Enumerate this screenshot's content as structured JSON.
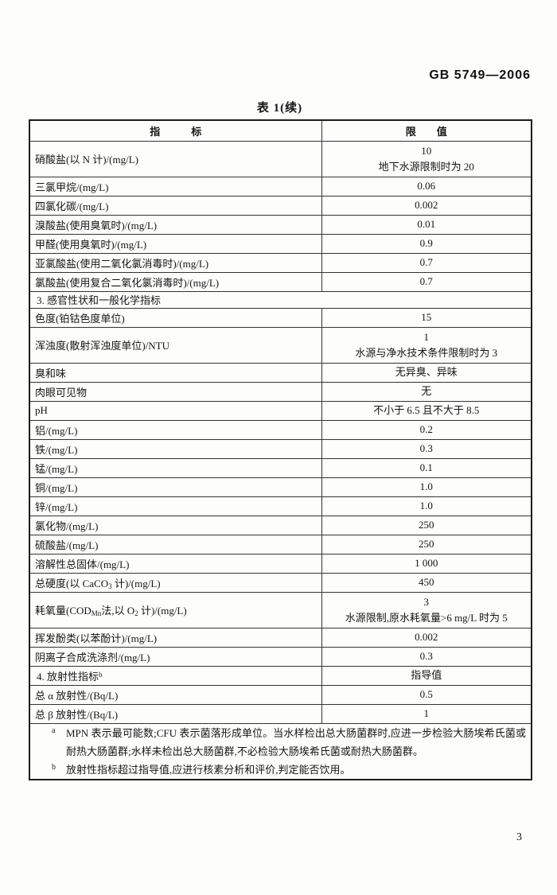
{
  "page": {
    "standard_code": "GB 5749—2006",
    "table_title": "表 1(续)",
    "page_number": "3"
  },
  "table": {
    "header": {
      "indicator": "指　　　标",
      "limit": "限　　值"
    },
    "rows": [
      {
        "label": "硝酸盐(以 N 计)/(mg/L)",
        "value": [
          "10",
          "地下水源限制时为 20"
        ]
      },
      {
        "label": "三氯甲烷/(mg/L)",
        "value": [
          "0.06"
        ]
      },
      {
        "label": "四氯化碳/(mg/L)",
        "value": [
          "0.002"
        ]
      },
      {
        "label": "溴酸盐(使用臭氧时)/(mg/L)",
        "value": [
          "0.01"
        ]
      },
      {
        "label": "甲醛(使用臭氧时)/(mg/L)",
        "value": [
          "0.9"
        ]
      },
      {
        "label": "亚氯酸盐(使用二氧化氯消毒时)/(mg/L)",
        "value": [
          "0.7"
        ]
      },
      {
        "label": "氯酸盐(使用复合二氧化氯消毒时)/(mg/L)",
        "value": [
          "0.7"
        ]
      },
      {
        "label": "3. 感官性状和一般化学指标",
        "section": true,
        "full": true
      },
      {
        "label": "色度(铂钴色度单位)",
        "value": [
          "15"
        ]
      },
      {
        "label": "浑浊度(散射浑浊度单位)/NTU",
        "value": [
          "1",
          "水源与净水技术条件限制时为 3"
        ]
      },
      {
        "label": "臭和味",
        "value": [
          "无异臭、异味"
        ]
      },
      {
        "label": "肉眼可见物",
        "value": [
          "无"
        ]
      },
      {
        "label": "pH",
        "value": [
          "不小于 6.5 且不大于 8.5"
        ]
      },
      {
        "label": "铝/(mg/L)",
        "value": [
          "0.2"
        ]
      },
      {
        "label": "铁/(mg/L)",
        "value": [
          "0.3"
        ]
      },
      {
        "label": "锰/(mg/L)",
        "value": [
          "0.1"
        ]
      },
      {
        "label": "铜/(mg/L)",
        "value": [
          "1.0"
        ]
      },
      {
        "label": "锌/(mg/L)",
        "value": [
          "1.0"
        ]
      },
      {
        "label": "氯化物/(mg/L)",
        "value": [
          "250"
        ]
      },
      {
        "label": "硫酸盐/(mg/L)",
        "value": [
          "250"
        ]
      },
      {
        "label": "溶解性总固体/(mg/L)",
        "value": [
          "1 000"
        ]
      },
      {
        "label": [
          {
            "t": "总硬度(以 CaCO"
          },
          {
            "t": "3",
            "sub": true
          },
          {
            "t": " 计)/(mg/L)"
          }
        ],
        "value": [
          "450"
        ]
      },
      {
        "label": [
          {
            "t": "耗氧量(COD"
          },
          {
            "t": "Mn",
            "sub": true
          },
          {
            "t": "法,以 O"
          },
          {
            "t": "2",
            "sub": true
          },
          {
            "t": " 计)/(mg/L)"
          }
        ],
        "value": [
          "3",
          "水源限制,原水耗氧量>6 mg/L 时为 5"
        ]
      },
      {
        "label": "挥发酚类(以苯酚计)/(mg/L)",
        "value": [
          "0.002"
        ]
      },
      {
        "label": "阴离子合成洗涤剂/(mg/L)",
        "value": [
          "0.3"
        ]
      },
      {
        "label": [
          {
            "t": "4. 放射性指标"
          },
          {
            "t": "b",
            "sup": true
          }
        ],
        "section": true,
        "value": [
          "指导值"
        ]
      },
      {
        "label": "总 α 放射性/(Bq/L)",
        "value": [
          "0.5"
        ]
      },
      {
        "label": "总 β 放射性/(Bq/L)",
        "value": [
          "1"
        ]
      }
    ],
    "footnotes": [
      {
        "marker": "a",
        "text": "MPN 表示最可能数;CFU 表示菌落形成单位。当水样检出总大肠菌群时,应进一步检验大肠埃希氏菌或耐热大肠菌群;水样未检出总大肠菌群,不必检验大肠埃希氏菌或耐热大肠菌群。"
      },
      {
        "marker": "b",
        "text": "放射性指标超过指导值,应进行核素分析和评价,判定能否饮用。"
      }
    ]
  }
}
